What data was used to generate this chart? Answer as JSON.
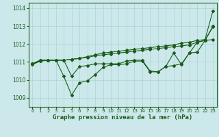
{
  "xlabel": "Graphe pression niveau de la mer (hPa)",
  "xlim": [
    -0.5,
    23.5
  ],
  "ylim": [
    1008.5,
    1014.3
  ],
  "yticks": [
    1009,
    1010,
    1011,
    1012,
    1013,
    1014
  ],
  "xticks": [
    0,
    1,
    2,
    3,
    4,
    5,
    6,
    7,
    8,
    9,
    10,
    11,
    12,
    13,
    14,
    15,
    16,
    17,
    18,
    19,
    20,
    21,
    22,
    23
  ],
  "bg_color": "#cce8ea",
  "grid_color": "#aad4d6",
  "line_color": "#1a5c1a",
  "line1_y": [
    1010.9,
    1011.1,
    1011.1,
    1011.1,
    1011.1,
    1011.15,
    1011.2,
    1011.3,
    1011.4,
    1011.5,
    1011.55,
    1011.6,
    1011.65,
    1011.7,
    1011.75,
    1011.8,
    1011.85,
    1011.9,
    1011.95,
    1012.05,
    1012.1,
    1012.2,
    1012.25,
    1013.85
  ],
  "line2_y": [
    1010.9,
    1011.05,
    1011.1,
    1011.1,
    1011.1,
    1011.15,
    1011.2,
    1011.25,
    1011.35,
    1011.4,
    1011.45,
    1011.5,
    1011.55,
    1011.6,
    1011.65,
    1011.7,
    1011.75,
    1011.8,
    1011.85,
    1011.9,
    1011.95,
    1012.1,
    1012.2,
    1012.25
  ],
  "line3_y": [
    1010.9,
    1011.1,
    1011.1,
    1011.1,
    1011.1,
    1010.2,
    1010.75,
    1010.8,
    1010.9,
    1010.9,
    1010.9,
    1010.9,
    1011.05,
    1011.1,
    1011.1,
    1010.5,
    1010.45,
    1010.75,
    1010.8,
    1010.9,
    1011.5,
    1011.55,
    1012.2,
    1013.0
  ],
  "line4_y": [
    1010.85,
    1011.05,
    1011.1,
    1011.1,
    1010.2,
    1009.15,
    1009.85,
    1009.95,
    1010.3,
    1010.7,
    1010.85,
    1010.85,
    1010.9,
    1011.05,
    1011.05,
    1010.45,
    1010.45,
    1010.75,
    1011.5,
    1010.85,
    1011.5,
    1012.1,
    1012.2,
    1012.95
  ]
}
